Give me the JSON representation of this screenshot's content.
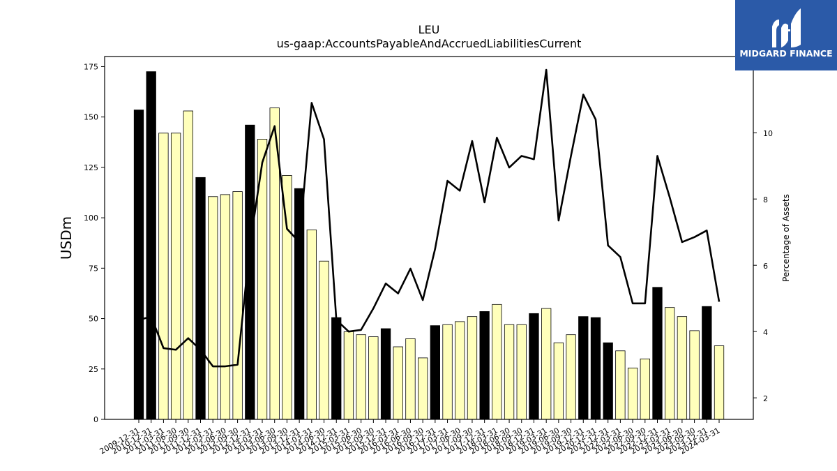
{
  "chart_data": {
    "type": "bar",
    "title": "LEU",
    "subtitle": "us-gaap:AccountsPayableAndAccruedLiabilitiesCurrent",
    "ylabel": "USDm",
    "ylabel_right": "Percentage of Assets",
    "ylim": [
      0,
      180
    ],
    "yticks": [
      0,
      25,
      50,
      75,
      100,
      125,
      150,
      175
    ],
    "y2lim": [
      1.35,
      12.3
    ],
    "y2ticks": [
      2,
      4,
      6,
      8,
      10
    ],
    "grid": false,
    "colors": {
      "annual": "#000000",
      "quarterly": "#ffffbb",
      "line": "#000000"
    },
    "categories": [
      "2009-12-31",
      "2010-12-31",
      "2011-03-31",
      "2011-06-30",
      "2011-09-30",
      "2011-12-31",
      "2012-03-31",
      "2012-06-30",
      "2012-09-30",
      "2012-12-31",
      "2013-03-31",
      "2013-06-30",
      "2013-09-30",
      "2013-12-31",
      "2014-03-31",
      "2014-06-30",
      "2014-12-31",
      "2015-03-31",
      "2015-06-30",
      "2015-09-30",
      "2015-12-31",
      "2016-03-31",
      "2016-06-30",
      "2016-09-30",
      "2016-12-31",
      "2017-03-31",
      "2017-06-30",
      "2017-09-30",
      "2017-12-31",
      "2018-03-31",
      "2018-06-30",
      "2018-09-30",
      "2018-12-31",
      "2019-03-31",
      "2019-06-30",
      "2019-09-30",
      "2019-12-31",
      "2020-12-31",
      "2021-12-31",
      "2022-03-31",
      "2022-06-30",
      "2022-09-30",
      "2022-12-31",
      "2023-03-31",
      "2023-06-30",
      "2023-09-30",
      "2023-12-31",
      "2024-03-31"
    ],
    "series": [
      {
        "values": [
          153.5,
          172.5,
          142,
          142,
          153,
          120,
          110.5,
          111.5,
          113,
          146,
          139,
          154.5,
          121,
          114.5,
          94,
          78.5,
          50.5,
          43.5,
          42,
          41,
          45,
          36,
          40,
          30.5,
          46.5,
          47,
          48.5,
          51,
          53.5,
          57,
          47,
          47,
          52.5,
          55,
          38,
          42,
          51,
          50.5,
          38,
          34,
          25.5,
          30,
          65.5,
          55.5,
          51,
          44,
          56,
          36.5
        ],
        "kind": [
          "annual",
          "annual",
          "quarterly",
          "quarterly",
          "quarterly",
          "annual",
          "quarterly",
          "quarterly",
          "quarterly",
          "annual",
          "quarterly",
          "quarterly",
          "quarterly",
          "annual",
          "quarterly",
          "quarterly",
          "annual",
          "quarterly",
          "quarterly",
          "quarterly",
          "annual",
          "quarterly",
          "quarterly",
          "quarterly",
          "annual",
          "quarterly",
          "quarterly",
          "quarterly",
          "annual",
          "quarterly",
          "quarterly",
          "quarterly",
          "annual",
          "quarterly",
          "quarterly",
          "quarterly",
          "annual",
          "annual",
          "annual",
          "quarterly",
          "quarterly",
          "quarterly",
          "annual",
          "quarterly",
          "quarterly",
          "quarterly",
          "annual",
          "quarterly"
        ]
      },
      {
        "axis": "right",
        "type": "line",
        "values": [
          4.35,
          4.45,
          3.5,
          3.45,
          3.8,
          3.45,
          2.95,
          2.95,
          3.0,
          6.6,
          9.1,
          10.2,
          7.1,
          6.7,
          10.9,
          9.8,
          4.35,
          4.0,
          4.05,
          4.7,
          5.45,
          5.15,
          5.9,
          4.95,
          6.5,
          8.55,
          8.25,
          9.75,
          7.9,
          9.85,
          8.95,
          9.3,
          9.2,
          11.9,
          7.35,
          9.3,
          11.15,
          10.4,
          6.6,
          6.25,
          4.85,
          4.85,
          9.3,
          8.05,
          6.7,
          6.85,
          7.05,
          4.9
        ]
      }
    ]
  },
  "logo": {
    "text": "MIDGARD FINANCE",
    "bg_color": "#2b5aa8"
  }
}
